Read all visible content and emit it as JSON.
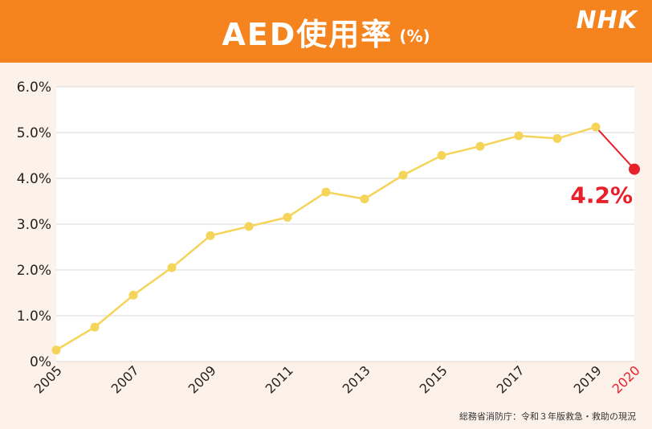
{
  "header": {
    "title": "AED使用率",
    "unit": "(%)",
    "logo": "NHK"
  },
  "source": "総務省消防庁：令和３年版救急・救助の現況",
  "colors": {
    "header_bg": "#f5841f",
    "line": "#f5d45a",
    "highlight": "#e8202a",
    "grid": "#d9d9d9"
  },
  "chart_data": {
    "type": "line",
    "title": "AED使用率",
    "x": [
      2005,
      2006,
      2007,
      2008,
      2009,
      2010,
      2011,
      2012,
      2013,
      2014,
      2015,
      2016,
      2017,
      2018,
      2019,
      2020
    ],
    "y": [
      0.25,
      0.75,
      1.45,
      2.05,
      2.75,
      2.95,
      3.15,
      3.7,
      3.55,
      4.07,
      4.5,
      4.7,
      4.93,
      4.87,
      5.12,
      4.2
    ],
    "x_tick_labels": [
      "2005",
      "2007",
      "2009",
      "2011",
      "2013",
      "2015",
      "2017",
      "2019",
      "2020"
    ],
    "y_tick_labels": [
      "0%",
      "1.0%",
      "2.0%",
      "3.0%",
      "4.0%",
      "5.0%",
      "6.0%"
    ],
    "y_ticks": [
      0,
      1,
      2,
      3,
      4,
      5,
      6
    ],
    "ylim": [
      0,
      6
    ],
    "xlim": [
      2005,
      2020
    ],
    "highlight_label": "4.2%",
    "grid": true
  }
}
